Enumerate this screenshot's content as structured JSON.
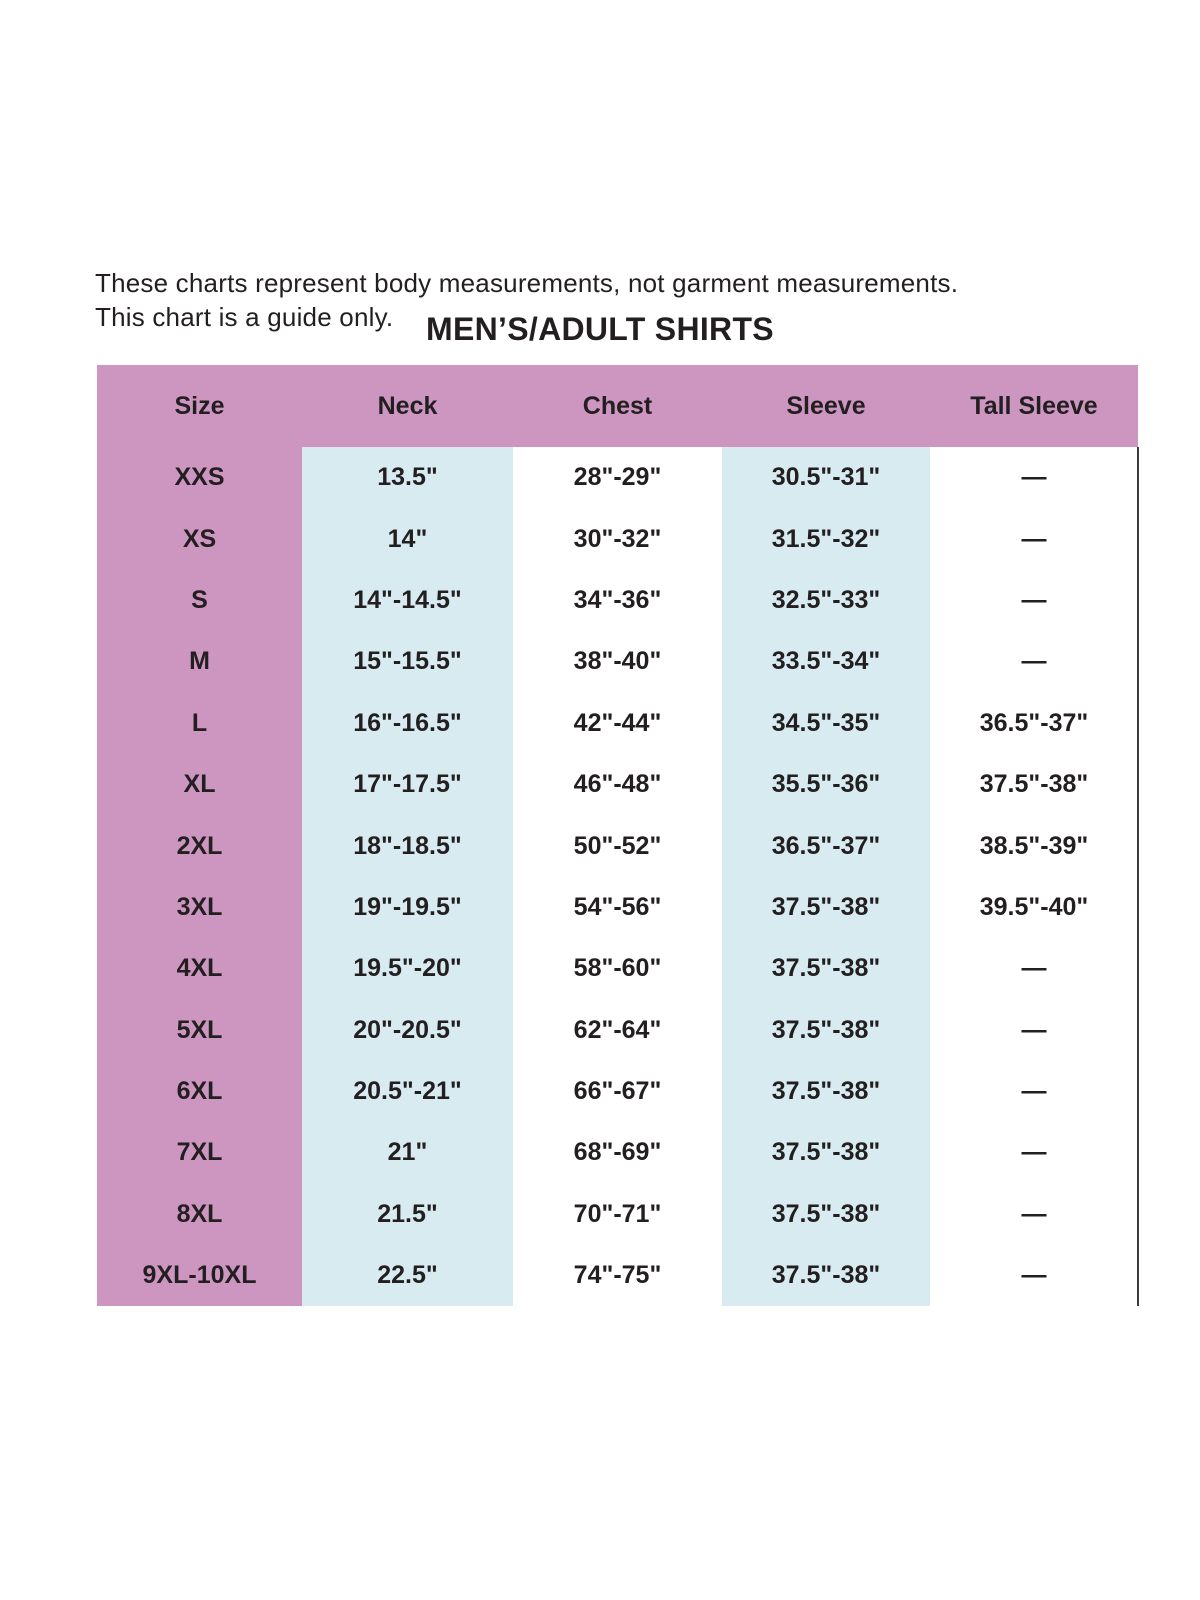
{
  "intro": {
    "line1": "These charts represent body measurements, not garment measurements.",
    "line2": "This chart is a guide only."
  },
  "title": "MEN’S/ADULT SHIRTS",
  "colors": {
    "pink": "#cc96c1",
    "blue": "#d7ebf1",
    "text": "#231f20",
    "line": "#3b3b3b"
  },
  "table": {
    "columns": [
      "Size",
      "Neck",
      "Chest",
      "Sleeve",
      "Tall Sleeve"
    ],
    "rows": [
      {
        "size": "XXS",
        "neck": "13.5\"",
        "chest": "28\"-29\"",
        "sleeve": "30.5\"-31\"",
        "tall_sleeve": "—"
      },
      {
        "size": "XS",
        "neck": "14\"",
        "chest": "30\"-32\"",
        "sleeve": "31.5\"-32\"",
        "tall_sleeve": "—"
      },
      {
        "size": "S",
        "neck": "14\"-14.5\"",
        "chest": "34\"-36\"",
        "sleeve": "32.5\"-33\"",
        "tall_sleeve": "—"
      },
      {
        "size": "M",
        "neck": "15\"-15.5\"",
        "chest": "38\"-40\"",
        "sleeve": "33.5\"-34\"",
        "tall_sleeve": "—"
      },
      {
        "size": "L",
        "neck": "16\"-16.5\"",
        "chest": "42\"-44\"",
        "sleeve": "34.5\"-35\"",
        "tall_sleeve": "36.5\"-37\""
      },
      {
        "size": "XL",
        "neck": "17\"-17.5\"",
        "chest": "46\"-48\"",
        "sleeve": "35.5\"-36\"",
        "tall_sleeve": "37.5\"-38\""
      },
      {
        "size": "2XL",
        "neck": "18\"-18.5\"",
        "chest": "50\"-52\"",
        "sleeve": "36.5\"-37\"",
        "tall_sleeve": "38.5\"-39\""
      },
      {
        "size": "3XL",
        "neck": "19\"-19.5\"",
        "chest": "54\"-56\"",
        "sleeve": "37.5\"-38\"",
        "tall_sleeve": "39.5\"-40\""
      },
      {
        "size": "4XL",
        "neck": "19.5\"-20\"",
        "chest": "58\"-60\"",
        "sleeve": "37.5\"-38\"",
        "tall_sleeve": "—"
      },
      {
        "size": "5XL",
        "neck": "20\"-20.5\"",
        "chest": "62\"-64\"",
        "sleeve": "37.5\"-38\"",
        "tall_sleeve": "—"
      },
      {
        "size": "6XL",
        "neck": "20.5\"-21\"",
        "chest": "66\"-67\"",
        "sleeve": "37.5\"-38\"",
        "tall_sleeve": "—"
      },
      {
        "size": "7XL",
        "neck": "21\"",
        "chest": "68\"-69\"",
        "sleeve": "37.5\"-38\"",
        "tall_sleeve": "—"
      },
      {
        "size": "8XL",
        "neck": "21.5\"",
        "chest": "70\"-71\"",
        "sleeve": "37.5\"-38\"",
        "tall_sleeve": "—"
      },
      {
        "size": "9XL-10XL",
        "neck": "22.5\"",
        "chest": "74\"-75\"",
        "sleeve": "37.5\"-38\"",
        "tall_sleeve": "—"
      }
    ]
  }
}
